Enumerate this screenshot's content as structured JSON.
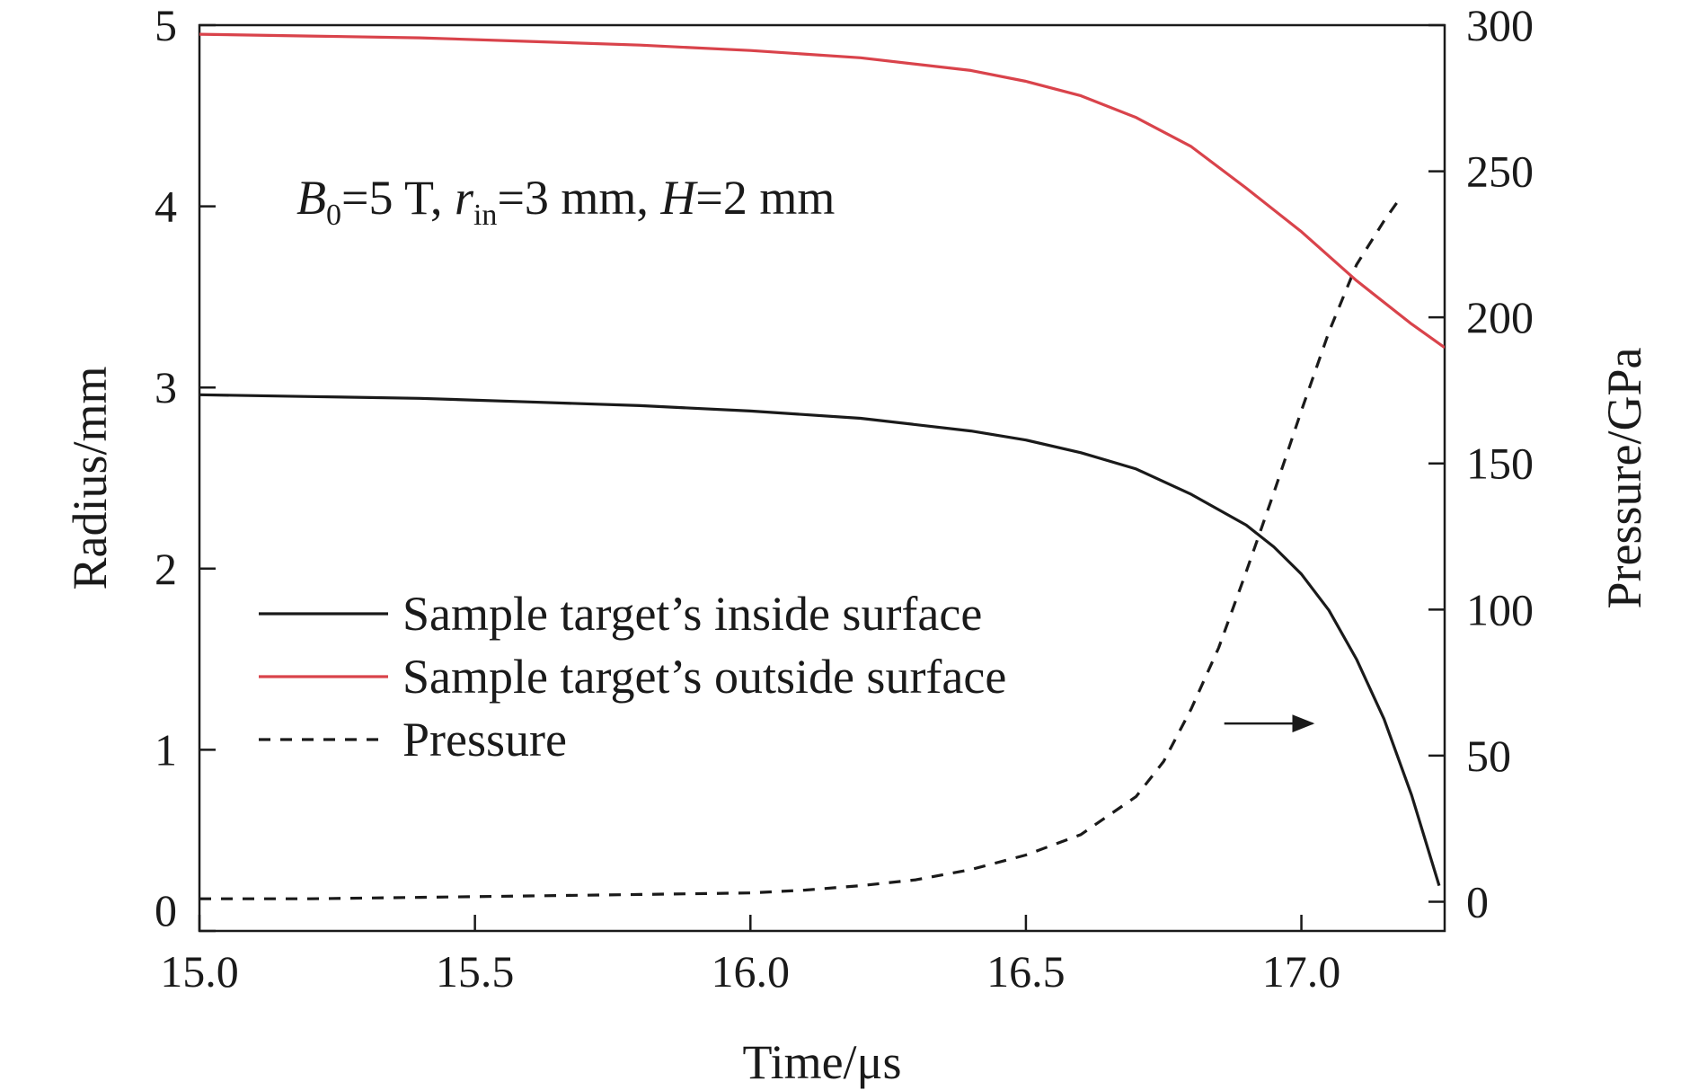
{
  "chart_data": {
    "type": "line",
    "annotation": {
      "parts": [
        {
          "text": "B",
          "style": "italic"
        },
        {
          "text": "0",
          "style": "sub"
        },
        {
          "text": "=5 T, ",
          "style": "normal"
        },
        {
          "text": "r",
          "style": "italic"
        },
        {
          "text": "in",
          "style": "sub"
        },
        {
          "text": "=3 mm, ",
          "style": "normal"
        },
        {
          "text": "H",
          "style": "italic"
        },
        {
          "text": "=2 mm",
          "style": "normal"
        }
      ]
    },
    "xlabel": "Time/μs",
    "ylabel_left": "Radius/mm",
    "ylabel_right": "Pressure/GPa",
    "xlim": [
      15.0,
      17.26
    ],
    "ylim_left": [
      0,
      5
    ],
    "ylim_right": [
      -10,
      300
    ],
    "x_ticks": [
      {
        "value": 15.0,
        "label": "15.0"
      },
      {
        "value": 15.5,
        "label": "15.5"
      },
      {
        "value": 16.0,
        "label": "16.0"
      },
      {
        "value": 16.5,
        "label": "16.5"
      },
      {
        "value": 17.0,
        "label": "17.0"
      }
    ],
    "y_ticks_left": [
      {
        "value": 0,
        "label": "0"
      },
      {
        "value": 1,
        "label": "1"
      },
      {
        "value": 2,
        "label": "2"
      },
      {
        "value": 3,
        "label": "3"
      },
      {
        "value": 4,
        "label": "4"
      },
      {
        "value": 5,
        "label": "5"
      }
    ],
    "y_ticks_right": [
      {
        "value": 0,
        "label": "0"
      },
      {
        "value": 50,
        "label": "50"
      },
      {
        "value": 100,
        "label": "100"
      },
      {
        "value": 150,
        "label": "150"
      },
      {
        "value": 200,
        "label": "200"
      },
      {
        "value": 250,
        "label": "250"
      },
      {
        "value": 300,
        "label": "300"
      }
    ],
    "legend_position": "left",
    "series": [
      {
        "name": "Sample target’s inside surface",
        "axis": "left",
        "color": "#1a1a1a",
        "dash": "solid",
        "x": [
          15.0,
          15.2,
          15.4,
          15.6,
          15.8,
          16.0,
          16.2,
          16.4,
          16.5,
          16.6,
          16.7,
          16.8,
          16.9,
          16.95,
          17.0,
          17.05,
          17.1,
          17.15,
          17.2,
          17.25
        ],
        "y": [
          2.96,
          2.95,
          2.94,
          2.92,
          2.9,
          2.87,
          2.83,
          2.76,
          2.71,
          2.64,
          2.55,
          2.41,
          2.24,
          2.12,
          1.97,
          1.77,
          1.5,
          1.17,
          0.75,
          0.25
        ]
      },
      {
        "name": "Sample target’s outside surface",
        "axis": "left",
        "color": "#d9434b",
        "dash": "solid",
        "x": [
          15.0,
          15.2,
          15.4,
          15.6,
          15.8,
          16.0,
          16.2,
          16.4,
          16.5,
          16.6,
          16.7,
          16.8,
          16.9,
          17.0,
          17.1,
          17.2,
          17.26
        ],
        "y": [
          4.95,
          4.94,
          4.93,
          4.91,
          4.89,
          4.86,
          4.82,
          4.75,
          4.69,
          4.61,
          4.49,
          4.33,
          4.1,
          3.86,
          3.59,
          3.35,
          3.22
        ]
      },
      {
        "name": "Pressure",
        "axis": "right",
        "color": "#1a1a1a",
        "dash": "dashed",
        "x": [
          15.0,
          15.2,
          15.4,
          15.6,
          15.8,
          16.0,
          16.1,
          16.2,
          16.3,
          16.4,
          16.5,
          16.6,
          16.7,
          16.75,
          16.8,
          16.85,
          16.9,
          16.95,
          17.0,
          17.05,
          17.1,
          17.15,
          17.18
        ],
        "y": [
          1,
          1,
          1.5,
          2,
          2.5,
          3,
          4,
          5.5,
          7.5,
          11,
          16,
          23,
          36,
          48,
          66,
          87,
          113,
          140,
          168,
          195,
          218,
          233,
          241
        ]
      }
    ],
    "arrow_annotation": {
      "from": [
        16.86,
        61
      ],
      "to": [
        17.02,
        61
      ],
      "axis": "right"
    }
  }
}
